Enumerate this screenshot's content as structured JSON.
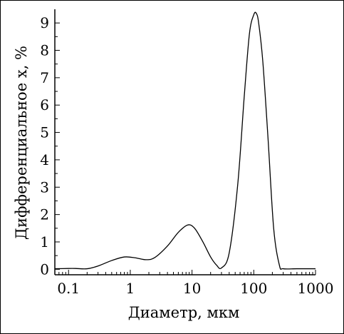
{
  "chart_data": {
    "type": "line",
    "title": "",
    "xlabel": "Диаметр, мкм",
    "ylabel": "Дифференциальное x, %",
    "x_scale": "log",
    "xlim": [
      0.06,
      1000
    ],
    "ylim": [
      -0.2,
      9.5
    ],
    "grid": false,
    "legend": "none",
    "x_ticks": [
      0.1,
      1,
      10,
      100,
      1000
    ],
    "x_tick_labels": [
      "0.1",
      "1",
      "10",
      "100",
      "1000"
    ],
    "y_ticks": [
      0,
      1,
      2,
      3,
      4,
      5,
      6,
      7,
      8,
      9
    ],
    "y_tick_labels": [
      "0",
      "1",
      "2",
      "3",
      "4",
      "5",
      "6",
      "7",
      "8",
      "9"
    ],
    "series": [
      {
        "color": "#000000",
        "x": [
          0.06,
          0.1,
          0.13,
          0.2,
          0.3,
          0.5,
          0.8,
          1.2,
          1.8,
          2.5,
          4,
          6,
          8.5,
          11,
          15,
          20,
          25,
          30,
          40,
          55,
          70,
          85,
          100,
          110,
          120,
          140,
          170,
          210,
          260,
          300,
          500,
          1000
        ],
        "y": [
          0.02,
          0.03,
          0.03,
          0.02,
          0.12,
          0.32,
          0.45,
          0.42,
          0.35,
          0.43,
          0.85,
          1.35,
          1.62,
          1.5,
          1.0,
          0.45,
          0.15,
          0.05,
          0.6,
          3.1,
          6.3,
          8.6,
          9.3,
          9.35,
          9.0,
          7.6,
          4.8,
          1.5,
          0.15,
          0.02,
          0.02,
          0.02
        ]
      }
    ]
  }
}
